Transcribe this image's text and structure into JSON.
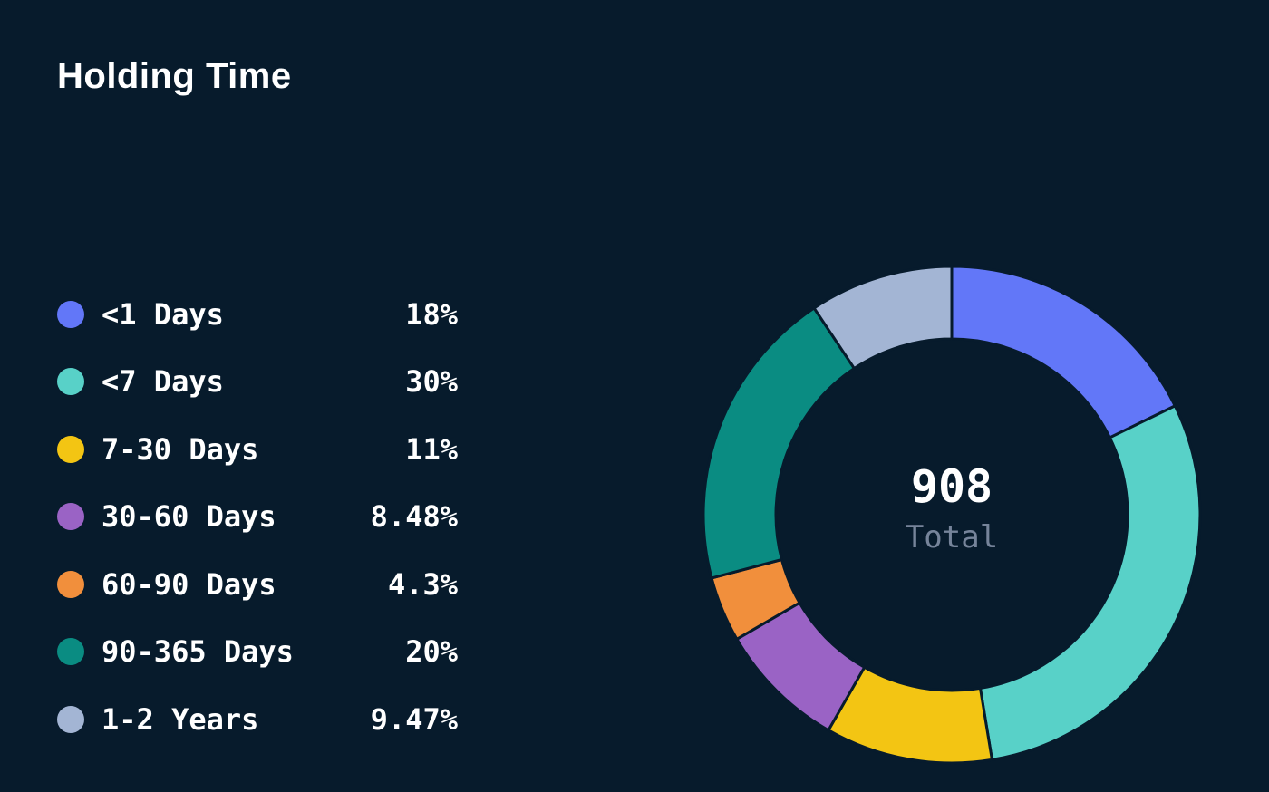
{
  "chart_data": {
    "type": "pie",
    "subtype": "donut",
    "title": "Holding Time",
    "legend_position": "left",
    "background_color": "#071b2c",
    "center": {
      "value": "908",
      "label": "Total"
    },
    "categories": [
      "<1 Days",
      "<7 Days",
      "7-30 Days",
      "30-60 Days",
      "60-90 Days",
      "90-365 Days",
      "1-2 Years"
    ],
    "values_pct": [
      18,
      30,
      11,
      8.48,
      4.3,
      20,
      9.47
    ],
    "display_values": [
      "18%",
      "30%",
      "11%",
      "8.48%",
      "4.3%",
      "20%",
      "9.47%"
    ],
    "colors": [
      "#6277f8",
      "#58d1c8",
      "#f3c513",
      "#9a63c5",
      "#f18f3c",
      "#0a8c82",
      "#a3b5d4"
    ],
    "donut_style": {
      "start_angle_deg": 0,
      "clockwise": true,
      "inner_radius_ratio": 0.7,
      "separator_color": "#071b2c"
    }
  }
}
